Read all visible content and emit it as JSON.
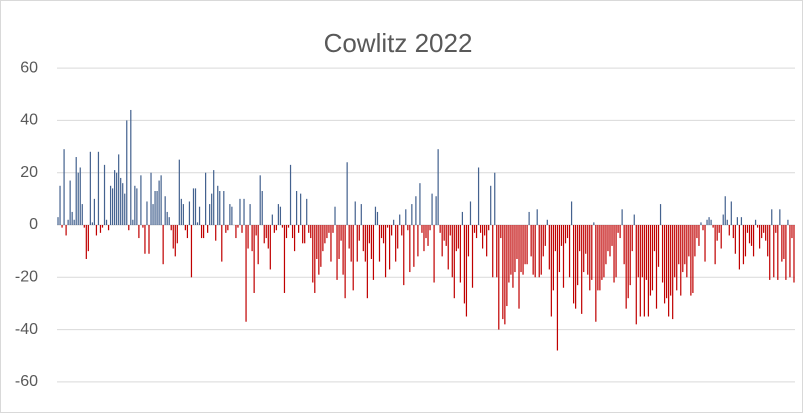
{
  "chart_data": {
    "type": "bar",
    "title": "Cowlitz 2022",
    "color": "#44628f",
    "negative_color": "#c00000",
    "ylim": [
      -70,
      70
    ],
    "yticks": [
      -60,
      -40,
      -20,
      0,
      20,
      40,
      60
    ],
    "grid": true,
    "values": [
      3,
      15,
      -1,
      29,
      -4,
      2,
      17,
      5,
      2,
      26,
      20,
      22,
      8,
      -1,
      -13,
      -10,
      28,
      1,
      10,
      -4,
      28,
      -3,
      -1,
      23,
      2,
      -2,
      15,
      14,
      21,
      20,
      27,
      18,
      16,
      12,
      40,
      -2,
      44,
      2,
      15,
      14,
      -5,
      19,
      -1,
      -11,
      9,
      -11,
      20,
      8,
      13,
      13,
      17,
      19,
      -15,
      11,
      5,
      3,
      -2,
      -9,
      -12,
      -7,
      25,
      10,
      8,
      -2,
      -5,
      9,
      -20,
      14,
      14,
      1,
      7,
      -5,
      -5,
      20,
      -3,
      8,
      12,
      21,
      -6,
      15,
      13,
      -14,
      13,
      -3,
      -2,
      8,
      7,
      0,
      -5,
      -1,
      10,
      -3,
      10,
      -37,
      -9,
      8,
      -10,
      -26,
      -4,
      -15,
      19,
      13,
      -7,
      -5,
      -9,
      -17,
      4,
      -3,
      -2,
      8,
      7,
      -1,
      -26,
      -5,
      -1,
      23,
      -5,
      -10,
      13,
      -3,
      12,
      -7,
      -7,
      10,
      -3,
      -5,
      -22,
      -26,
      -13,
      -19,
      -16,
      -10,
      -7,
      -5,
      -3,
      -14,
      -3,
      7,
      -21,
      -13,
      -6,
      -19,
      -28,
      24,
      -9,
      -14,
      -25,
      9,
      -14,
      -6,
      8,
      -10,
      -14,
      -28,
      -7,
      -13,
      -21,
      7,
      5,
      -14,
      -5,
      -7,
      -20,
      -1,
      -17,
      -4,
      2,
      -14,
      -9,
      4,
      -4,
      -23,
      6,
      -2,
      -18,
      8,
      -16,
      11,
      -12,
      16,
      -3,
      -10,
      -5,
      -8,
      -2,
      12,
      -22,
      11,
      29,
      -3,
      -12,
      -6,
      -8,
      -17,
      -4,
      -20,
      -28,
      -10,
      -9,
      -22,
      5,
      -30,
      -35,
      -12,
      9,
      -24,
      -3,
      -5,
      22,
      -3,
      -9,
      -4,
      -12,
      -2,
      15,
      -20,
      20,
      -20,
      -40,
      -5,
      -36,
      -38,
      -31,
      -22,
      -19,
      -24,
      -18,
      -13,
      -32,
      -18,
      -19,
      -15,
      -15,
      5,
      -12,
      -19,
      -20,
      6,
      -20,
      -19,
      -12,
      -8,
      2,
      -17,
      -35,
      -25,
      -10,
      -48,
      -18,
      -8,
      -24,
      -7,
      -5,
      -20,
      9,
      -30,
      -32,
      -23,
      -10,
      -34,
      -18,
      -11,
      -19,
      -25,
      -21,
      1,
      -37,
      -25,
      -25,
      -21,
      -20,
      -15,
      -10,
      -12,
      -8,
      -22,
      -20,
      -3,
      -5,
      6,
      -15,
      -32,
      -28,
      -23,
      -10,
      4,
      -38,
      -20,
      -35,
      -20,
      -35,
      -21,
      -35,
      -27,
      -25,
      -10,
      -32,
      -16,
      8,
      -22,
      -30,
      -28,
      -35,
      -27,
      -36,
      -20,
      -25,
      -15,
      -27,
      -18,
      -15,
      -20,
      -12,
      -27,
      -26,
      -12,
      -5,
      -8,
      1,
      -2,
      -14,
      2,
      3,
      2,
      -1,
      -15,
      -6,
      -3,
      -9,
      4,
      11,
      2,
      -4,
      9,
      -5,
      -11,
      3,
      -17,
      3,
      -15,
      -12,
      -3,
      -7,
      -8,
      -12,
      2,
      -1,
      -9,
      -5,
      -3,
      -6,
      -12,
      -21,
      6,
      -20,
      -3,
      -21,
      6,
      -14,
      -13,
      -21,
      2,
      -20,
      -5,
      -22
    ]
  }
}
